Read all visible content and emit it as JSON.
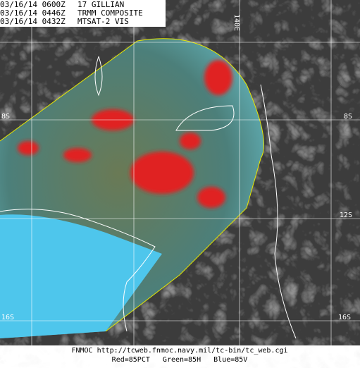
{
  "header": {
    "lines": [
      {
        "time": "03/16/14 0600Z",
        "label": "17 GILLIAN"
      },
      {
        "time": "03/16/14 0446Z",
        "label": "TRMM COMPOSITE"
      },
      {
        "time": "03/16/14 0432Z",
        "label": "MTSAT-2 VIS"
      }
    ]
  },
  "grid_labels": {
    "top": "140E",
    "left_top": "8S",
    "right_top": "8S",
    "right_mid": "12S",
    "left_bottom": "16S",
    "right_bottom": "16S"
  },
  "footer": {
    "source": "FNMOC http://tcweb.fnmoc.navy.mil/tc-bin/tc_web.cgi",
    "channels": "Red=85PCT   Green=85H   Blue=85V"
  }
}
